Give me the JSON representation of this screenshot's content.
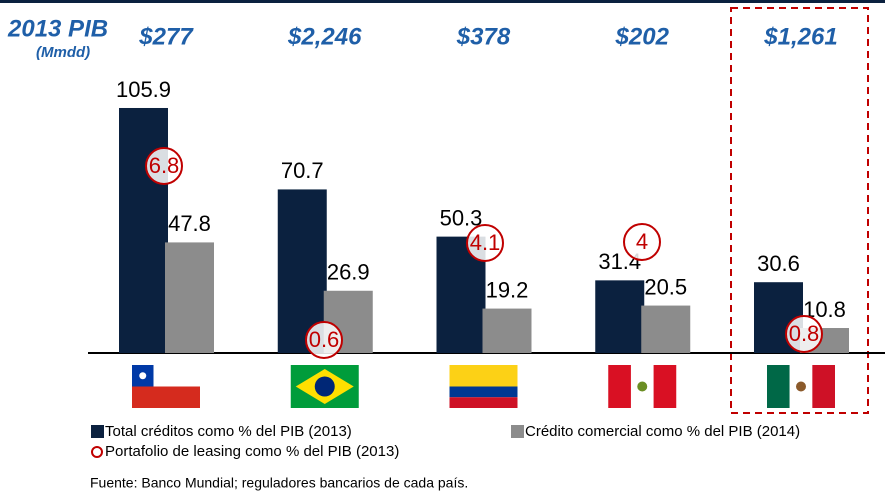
{
  "chart_data": {
    "type": "bar",
    "title": "2013 PIB",
    "subtitle": "(Mmdd)",
    "categories": [
      null,
      null,
      null,
      null,
      null
    ],
    "gdp": {
      "values": [
        277,
        2246,
        378,
        202,
        1261
      ],
      "value_labels": [
        "$277",
        "$2,246",
        "$378",
        "$202",
        "$1,261"
      ]
    },
    "series": [
      {
        "name": "Total créditos como % del PIB (2013)",
        "color": "#0b213f",
        "values": [
          105.9,
          70.7,
          50.3,
          31.4,
          30.6
        ]
      },
      {
        "name": "Crédito comercial como % del PIB (2014)",
        "color": "#8c8c8c",
        "values": [
          47.8,
          26.9,
          19.2,
          20.5,
          10.8
        ]
      },
      {
        "name": "Portafolio de leasing como % del PIB (2013)",
        "color": "#c00000",
        "marker": "circle",
        "values": [
          6.8,
          0.6,
          4.1,
          4.0,
          0.8
        ]
      }
    ],
    "ylim": [
      0,
      110
    ],
    "source": "Fuente:  Banco Mundial; reguladores bancarios de cada país."
  }
}
